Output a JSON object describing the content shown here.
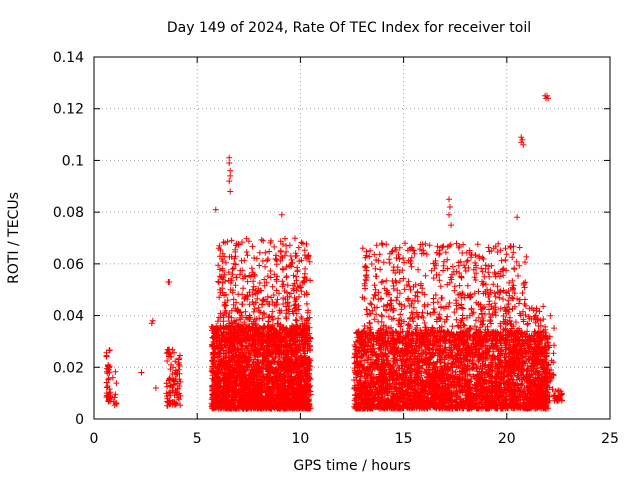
{
  "chart_data": {
    "type": "scatter",
    "title": "Day 149 of 2024, Rate Of TEC Index for receiver toil",
    "xlabel": "GPS time / hours",
    "ylabel": "ROTI / TECUs",
    "xlim": [
      0,
      25
    ],
    "ylim": [
      0,
      0.14
    ],
    "x_ticks": [
      0,
      5,
      10,
      15,
      20,
      25
    ],
    "x_tick_labels": [
      "0",
      "5",
      "10",
      "15",
      "20",
      "25"
    ],
    "y_ticks": [
      0,
      0.02,
      0.04,
      0.06,
      0.08,
      0.1,
      0.12,
      0.14
    ],
    "y_tick_labels": [
      "0",
      "0.02",
      "0.04",
      "0.06",
      "0.08",
      "0.1",
      "0.12",
      "0.14"
    ],
    "grid": true,
    "marker": "+",
    "color": "#ff0000",
    "series": [
      {
        "name": "ROTI",
        "description": "dense clusters of ROTI samples",
        "clusters": [
          {
            "x_range": [
              0.6,
              0.8
            ],
            "y_range": [
              0.006,
              0.027
            ],
            "count": 40
          },
          {
            "x_range": [
              0.9,
              1.1
            ],
            "y_range": [
              0.005,
              0.023
            ],
            "count": 10
          },
          {
            "x_range": [
              3.5,
              4.2
            ],
            "y_range": [
              0.005,
              0.027
            ],
            "count": 90
          },
          {
            "x_range": [
              5.7,
              10.5
            ],
            "y_range": [
              0.004,
              0.036
            ],
            "count": 2600
          },
          {
            "x_range": [
              6.0,
              10.5
            ],
            "y_range": [
              0.03,
              0.07
            ],
            "count": 500
          },
          {
            "x_range": [
              12.6,
              22.0
            ],
            "y_range": [
              0.004,
              0.034
            ],
            "count": 3600
          },
          {
            "x_range": [
              13.0,
              21.0
            ],
            "y_range": [
              0.03,
              0.068
            ],
            "count": 700
          },
          {
            "x_range": [
              21.0,
              22.3
            ],
            "y_range": [
              0.007,
              0.044
            ],
            "count": 160
          },
          {
            "x_range": [
              22.3,
              22.7
            ],
            "y_range": [
              0.007,
              0.012
            ],
            "count": 30
          }
        ],
        "points": [
          {
            "x": 2.3,
            "y": 0.018
          },
          {
            "x": 2.8,
            "y": 0.037
          },
          {
            "x": 2.85,
            "y": 0.038
          },
          {
            "x": 3.0,
            "y": 0.012
          },
          {
            "x": 3.6,
            "y": 0.053
          },
          {
            "x": 3.65,
            "y": 0.053
          },
          {
            "x": 5.9,
            "y": 0.081
          },
          {
            "x": 6.55,
            "y": 0.101
          },
          {
            "x": 6.55,
            "y": 0.099
          },
          {
            "x": 6.6,
            "y": 0.096
          },
          {
            "x": 6.6,
            "y": 0.094
          },
          {
            "x": 6.55,
            "y": 0.092
          },
          {
            "x": 6.6,
            "y": 0.088
          },
          {
            "x": 9.1,
            "y": 0.079
          },
          {
            "x": 17.2,
            "y": 0.085
          },
          {
            "x": 17.25,
            "y": 0.082
          },
          {
            "x": 17.2,
            "y": 0.079
          },
          {
            "x": 17.3,
            "y": 0.075
          },
          {
            "x": 20.5,
            "y": 0.078
          },
          {
            "x": 20.7,
            "y": 0.109
          },
          {
            "x": 20.75,
            "y": 0.108
          },
          {
            "x": 20.7,
            "y": 0.107
          },
          {
            "x": 20.8,
            "y": 0.106
          },
          {
            "x": 21.85,
            "y": 0.125
          },
          {
            "x": 21.9,
            "y": 0.124
          },
          {
            "x": 21.95,
            "y": 0.125
          },
          {
            "x": 22.0,
            "y": 0.124
          }
        ]
      }
    ]
  }
}
